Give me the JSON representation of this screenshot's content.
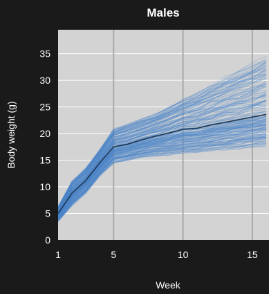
{
  "chart_data": {
    "type": "line",
    "title": "Males",
    "xlabel": "Week",
    "ylabel": "Body weight (g)",
    "xlim": [
      1,
      16.2
    ],
    "ylim": [
      0,
      39.5
    ],
    "x_ticks": [
      1,
      5,
      10,
      15
    ],
    "y_ticks": [
      0,
      5,
      10,
      15,
      20,
      25,
      30,
      35
    ],
    "grid": {
      "horizontal": true,
      "vertical_at_ticks": true
    },
    "legend": "none",
    "colors": {
      "figure_background": "#1a1a1a",
      "plot_background": "#d3d3d3",
      "individual_lines": "#4a86c8",
      "mean_line": "#1f3b5c",
      "vertical_gridlines": "#a8a8a8",
      "horizontal_gridlines": "#ffffff",
      "text": "#ffffff"
    },
    "series": [
      {
        "role": "mean",
        "x": [
          1,
          2,
          3,
          4,
          5,
          6,
          7,
          8,
          9,
          10,
          11,
          12,
          13,
          14,
          15,
          16
        ],
        "values": [
          5.0,
          8.8,
          11.2,
          14.5,
          17.5,
          18.0,
          18.8,
          19.5,
          20.1,
          20.8,
          21.0,
          21.6,
          22.1,
          22.6,
          23.1,
          23.6
        ]
      },
      {
        "role": "individuals",
        "x": [
          1,
          2,
          3,
          4,
          5,
          6,
          7,
          8,
          9,
          10,
          11,
          12,
          13,
          14,
          15,
          16
        ],
        "band_min": [
          3.5,
          6.5,
          8.8,
          12.0,
          14.5,
          15.0,
          15.5,
          15.8,
          16.0,
          16.3,
          16.5,
          16.8,
          17.0,
          17.2,
          17.5,
          17.8
        ],
        "band_max": [
          6.5,
          11.5,
          14.0,
          17.5,
          21.5,
          22.5,
          23.5,
          24.5,
          26.0,
          27.5,
          29.0,
          30.5,
          32.0,
          33.5,
          35.0,
          36.5
        ]
      }
    ]
  }
}
